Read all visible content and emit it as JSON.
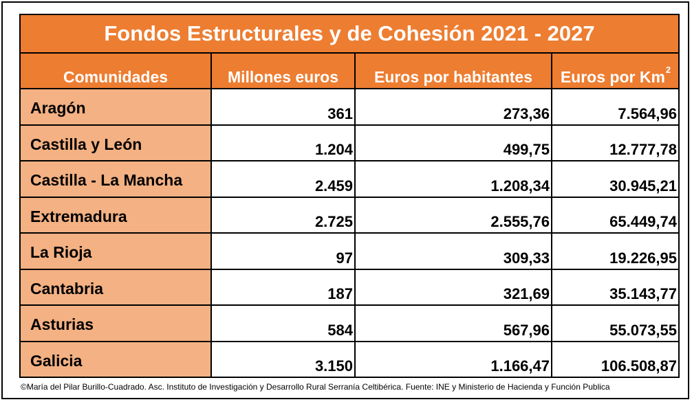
{
  "chart_data": {
    "type": "table",
    "title": "Fondos Estructurales y de Cohesión 2021 - 2027",
    "columns": [
      "Comunidades",
      "Millones euros",
      "Euros por habitantes",
      "Euros por Km"
    ],
    "column_superscript": "2",
    "rows": [
      {
        "name": "Aragón",
        "millones": "361",
        "por_habitante": "273,36",
        "por_km2": "7.564,96"
      },
      {
        "name": "Castilla y León",
        "millones": "1.204",
        "por_habitante": "499,75",
        "por_km2": "12.777,78"
      },
      {
        "name": "Castilla -  La Mancha",
        "millones": "2.459",
        "por_habitante": "1.208,34",
        "por_km2": "30.945,21"
      },
      {
        "name": "Extremadura",
        "millones": "2.725",
        "por_habitante": "2.555,76",
        "por_km2": "65.449,74"
      },
      {
        "name": "La Rioja",
        "millones": "97",
        "por_habitante": "309,33",
        "por_km2": "19.226,95"
      },
      {
        "name": "Cantabria",
        "millones": "187",
        "por_habitante": "321,69",
        "por_km2": "35.143,77"
      },
      {
        "name": "Asturias",
        "millones": "584",
        "por_habitante": "567,96",
        "por_km2": "55.073,55"
      },
      {
        "name": "Galicia",
        "millones": "3.150",
        "por_habitante": "1.166,47",
        "por_km2": "106.508,87"
      }
    ]
  },
  "footer": "©María del Pilar Burillo-Cuadrado. Asc.  Instituto de Investigación y Desarrollo Rural Serranía Celtibérica. Fuente: INE y Ministerio de Hacienda y Función Publica",
  "colors": {
    "header_bg": "#ED7D31",
    "name_bg": "#F4B183",
    "header_text": "#FFFFFF"
  }
}
